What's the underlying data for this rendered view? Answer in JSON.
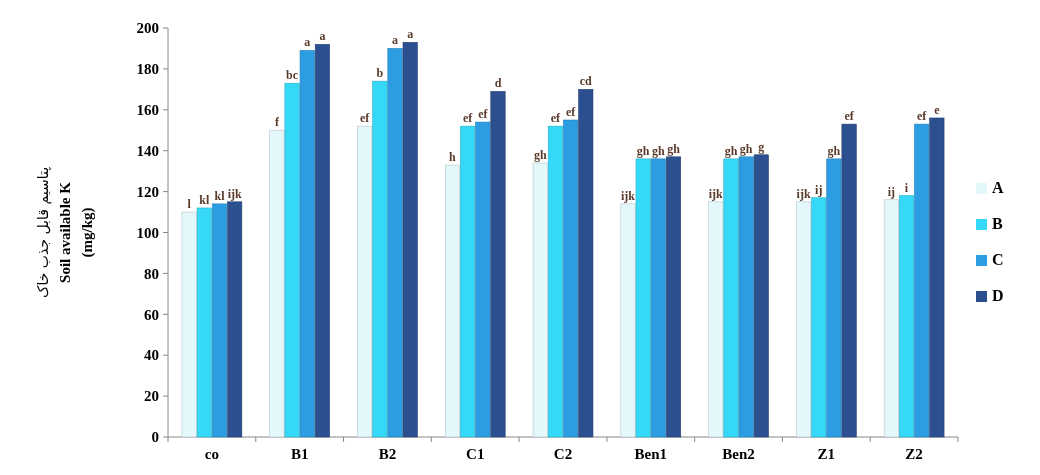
{
  "chart_data": {
    "type": "bar",
    "ylabel": "پتاسیم قابل جذب خاک\nSoil available K\n(mg/kg)",
    "categories": [
      "co",
      "B1",
      "B2",
      "C1",
      "C2",
      "Ben1",
      "Ben2",
      "Z1",
      "Z2"
    ],
    "series": [
      {
        "name": "A",
        "color": "#e4f7fb",
        "values": [
          110,
          150,
          152,
          133,
          134,
          114,
          115,
          115,
          116
        ],
        "value_labels": [
          "l",
          "f",
          "ef",
          "h",
          "gh",
          "ijk",
          "ijk",
          "ijk",
          "ij"
        ]
      },
      {
        "name": "B",
        "color": "#35d8f6",
        "values": [
          112,
          173,
          174,
          152,
          152,
          136,
          136,
          117,
          118
        ],
        "value_labels": [
          "kl",
          "bc",
          "b",
          "ef",
          "ef",
          "gh",
          "gh",
          "ij",
          "i"
        ]
      },
      {
        "name": "C",
        "color": "#2d9de3",
        "values": [
          114,
          189,
          190,
          154,
          155,
          136,
          137,
          136,
          153
        ],
        "value_labels": [
          "kl",
          "a",
          "a",
          "ef",
          "ef",
          "gh",
          "gh",
          "gh",
          "ef"
        ]
      },
      {
        "name": "D",
        "color": "#2c4f8f",
        "values": [
          115,
          192,
          193,
          169,
          170,
          137,
          138,
          153,
          156
        ],
        "value_labels": [
          "ijk",
          "a",
          "a",
          "d",
          "cd",
          "gh",
          "g",
          "ef",
          "e"
        ]
      }
    ],
    "ylim": [
      0,
      200
    ],
    "yticks": [
      0,
      20,
      40,
      60,
      80,
      100,
      120,
      140,
      160,
      180,
      200
    ],
    "grid": false,
    "legend": "right"
  }
}
